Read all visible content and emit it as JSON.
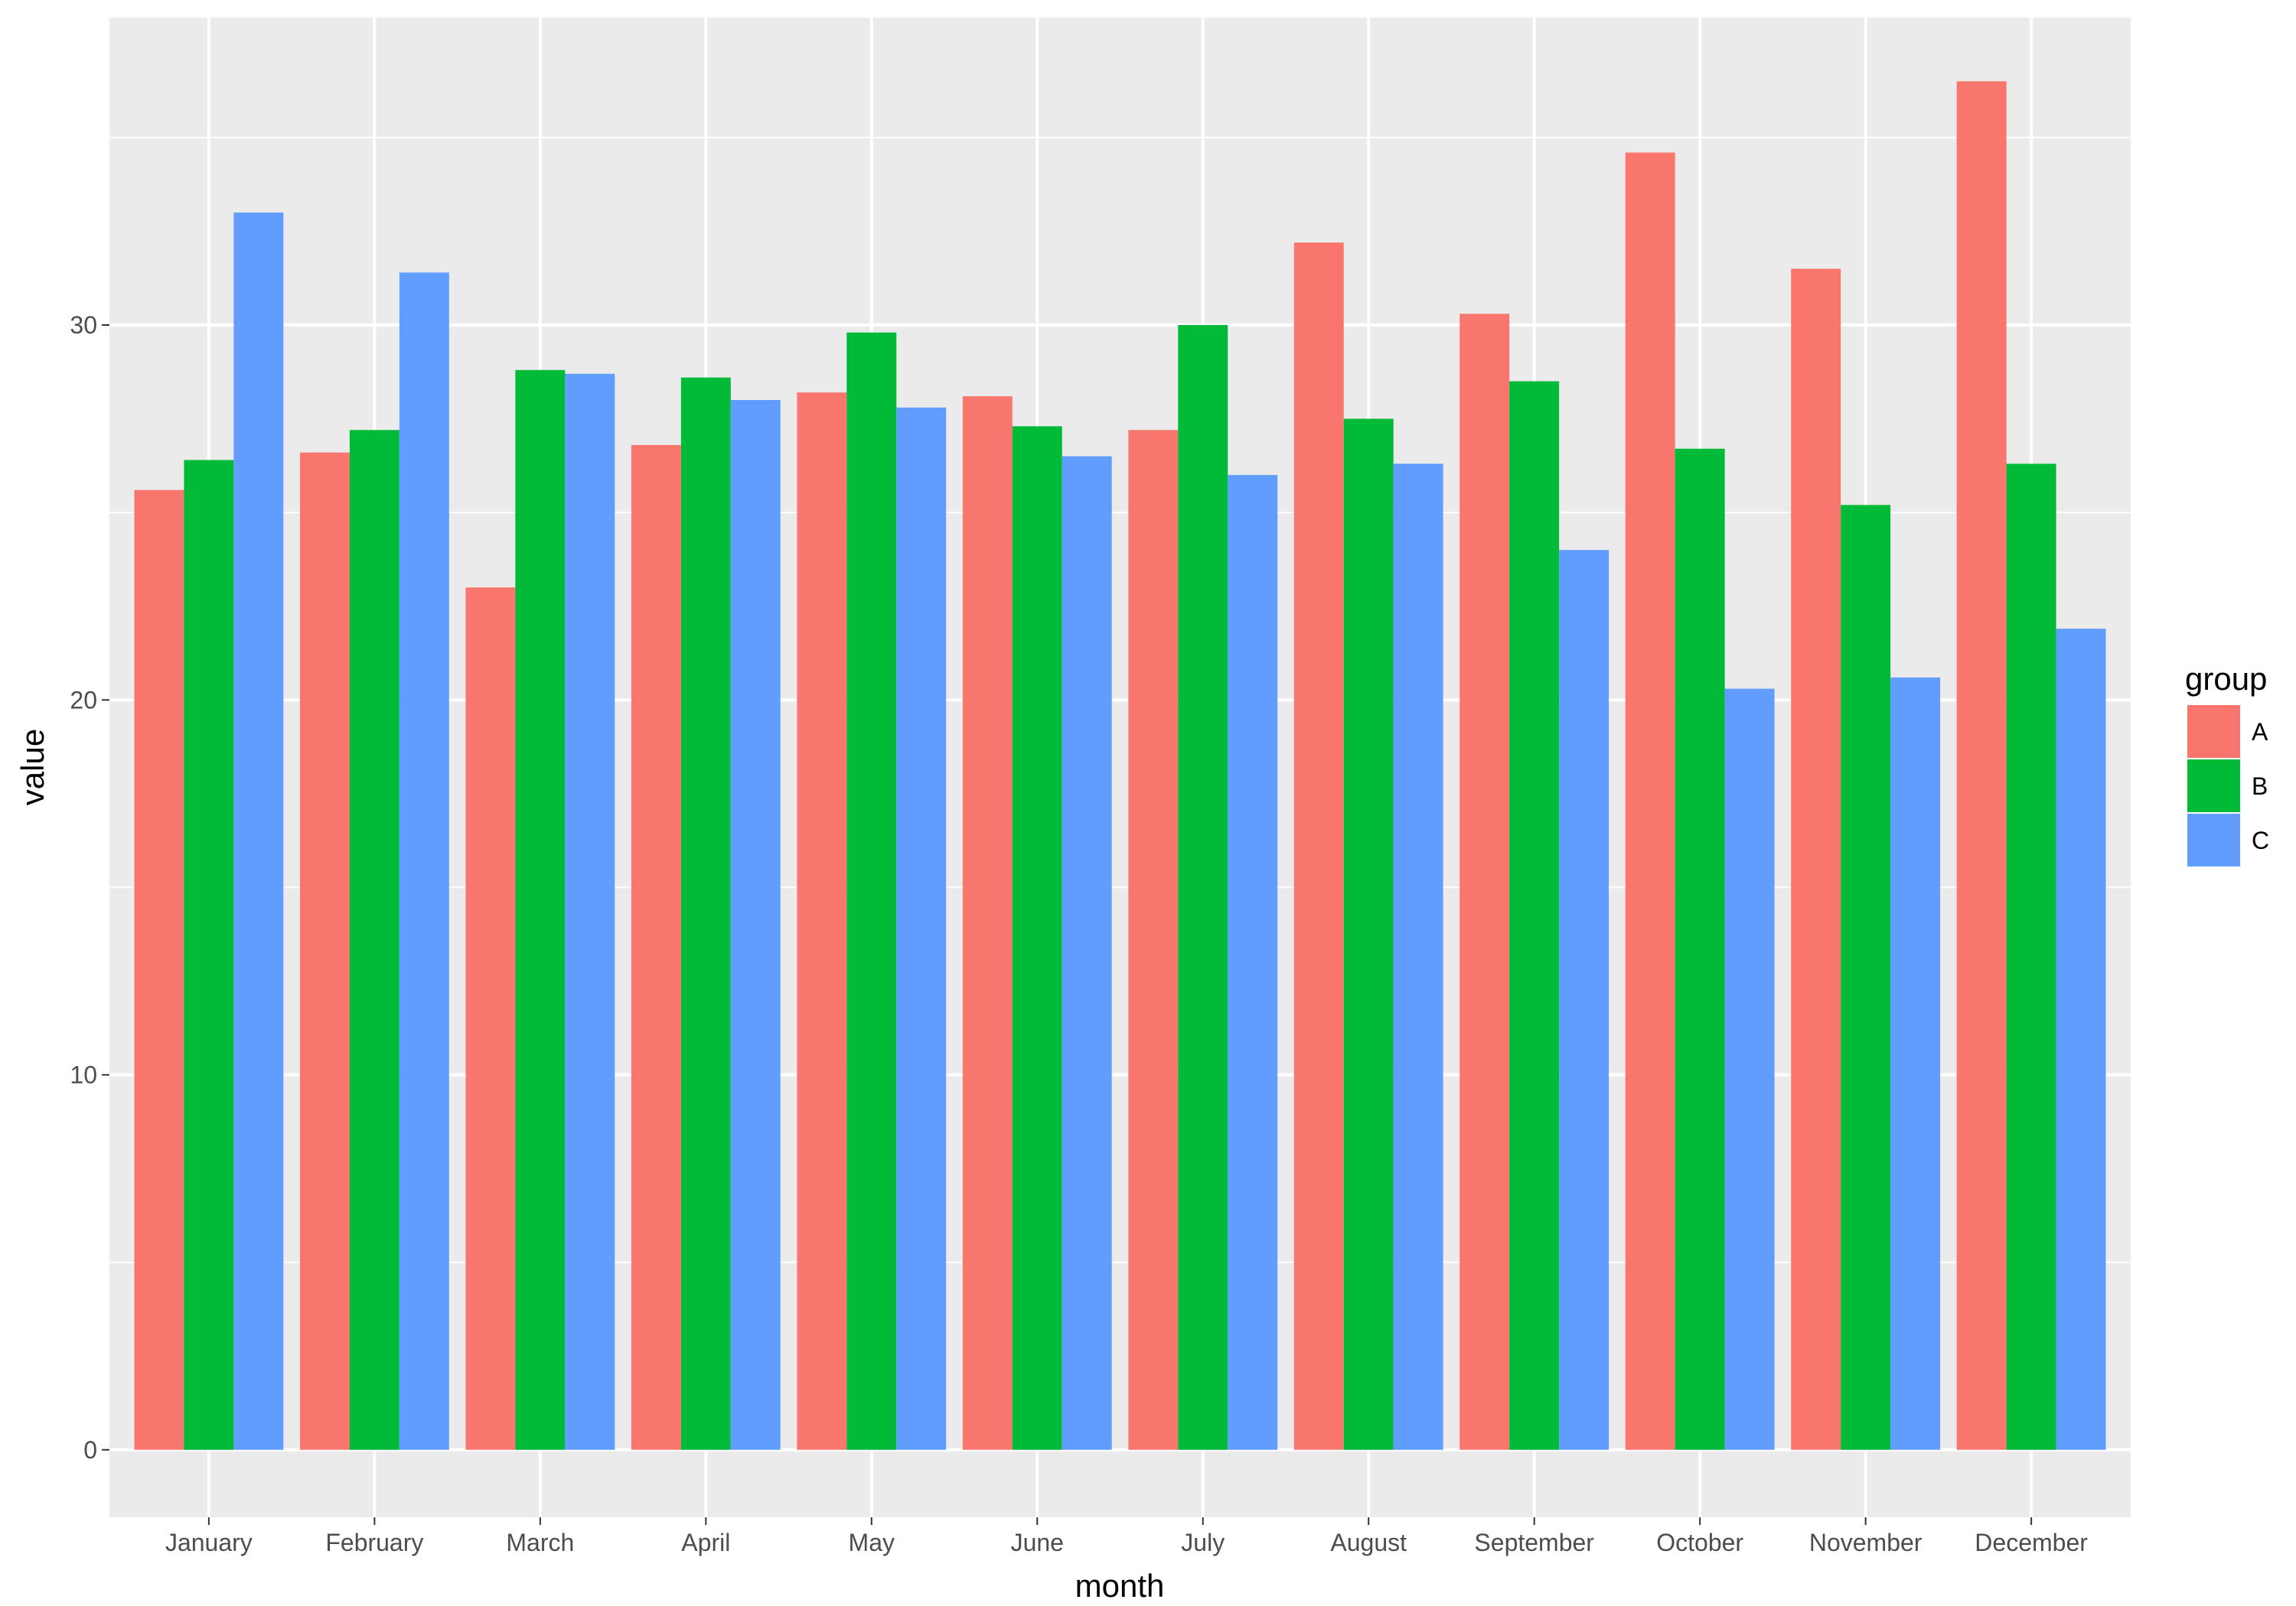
{
  "chart_data": {
    "type": "bar",
    "title": "",
    "xlabel": "month",
    "ylabel": "value",
    "ylim": [
      -1.8,
      38.2
    ],
    "y_ticks": [
      "0",
      "10",
      "20",
      "30"
    ],
    "grid": true,
    "legend_position": "right",
    "legend_title": "group",
    "categories": [
      "January",
      "February",
      "March",
      "April",
      "May",
      "June",
      "July",
      "August",
      "September",
      "October",
      "November",
      "December"
    ],
    "series": [
      {
        "name": "A",
        "color": "#F8766D",
        "values": [
          25.6,
          26.6,
          23.0,
          26.8,
          28.2,
          28.1,
          27.2,
          32.2,
          30.3,
          34.6,
          31.5,
          36.5
        ]
      },
      {
        "name": "B",
        "color": "#00BA38",
        "values": [
          26.4,
          27.2,
          28.8,
          28.6,
          29.8,
          27.3,
          30.0,
          27.5,
          28.5,
          26.7,
          25.2,
          26.3
        ]
      },
      {
        "name": "C",
        "color": "#619CFF",
        "values": [
          33.0,
          31.4,
          28.7,
          28.0,
          27.8,
          26.5,
          26.0,
          26.3,
          24.0,
          20.3,
          20.6,
          21.9
        ]
      }
    ]
  }
}
